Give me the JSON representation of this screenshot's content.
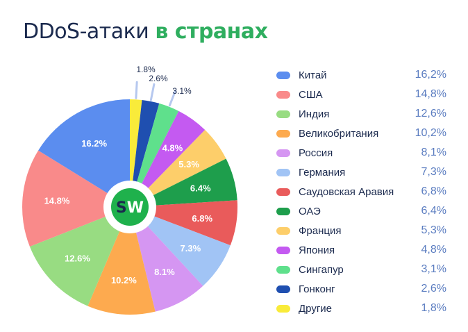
{
  "chart_data": {
    "type": "pie",
    "title": "DDoS-атаки",
    "title_highlight": "в странах",
    "legend_placement": "right",
    "categories": [
      "Китай",
      "США",
      "Индия",
      "Великобритания",
      "Россия",
      "Германия",
      "Саудовская Аравия",
      "ОАЭ",
      "Франция",
      "Япония",
      "Сингапур",
      "Гонконг",
      "Другие"
    ],
    "values": [
      16.2,
      14.8,
      12.6,
      10.2,
      8.1,
      7.3,
      6.8,
      6.4,
      5.3,
      4.8,
      3.1,
      2.6,
      1.8
    ],
    "slice_labels": [
      "16.2%",
      "14.8%",
      "12.6%",
      "10.2%",
      "8.1%",
      "7.3%",
      "6.8%",
      "6.4%",
      "5.3%",
      "4.8%",
      "3.1%",
      "2.6%",
      "1.8%"
    ],
    "legend_values": [
      "16,2%",
      "14,8%",
      "12,6%",
      "10,2%",
      "8,1%",
      "7,3%",
      "6,8%",
      "6,4%",
      "5,3%",
      "4,8%",
      "3,1%",
      "2,6%",
      "1,8%"
    ],
    "colors": [
      "#5b8def",
      "#f98a8a",
      "#98dc82",
      "#fdaa4f",
      "#d596f2",
      "#a1c4f5",
      "#e95b5b",
      "#1e9e4c",
      "#fdce6a",
      "#c45af1",
      "#5fe08c",
      "#1f4fb0",
      "#f9eb3a"
    ],
    "center_logo": "SW"
  }
}
